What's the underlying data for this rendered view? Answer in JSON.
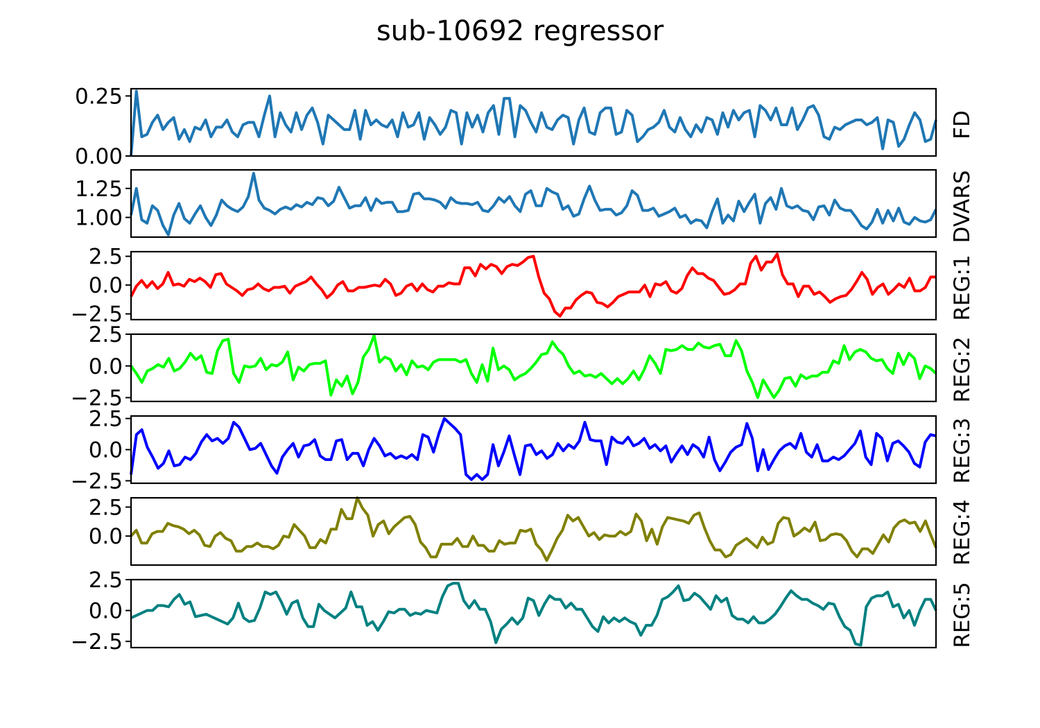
{
  "figure_title": "sub-10692 regressor",
  "chart_data": [
    {
      "type": "line",
      "name": "FD",
      "color": "#1f77b4",
      "ylim": [
        0.0,
        0.28
      ],
      "yticks": [
        0.0,
        0.25
      ],
      "yticklabels": [
        "0.00",
        "0.25"
      ],
      "values": [
        0.0,
        0.27,
        0.08,
        0.09,
        0.14,
        0.17,
        0.11,
        0.14,
        0.16,
        0.07,
        0.11,
        0.06,
        0.12,
        0.11,
        0.15,
        0.08,
        0.12,
        0.12,
        0.15,
        0.1,
        0.08,
        0.13,
        0.14,
        0.14,
        0.08,
        0.17,
        0.25,
        0.08,
        0.18,
        0.13,
        0.1,
        0.18,
        0.11,
        0.17,
        0.2,
        0.14,
        0.05,
        0.17,
        0.15,
        0.13,
        0.11,
        0.11,
        0.19,
        0.07,
        0.19,
        0.13,
        0.15,
        0.13,
        0.12,
        0.15,
        0.08,
        0.18,
        0.12,
        0.13,
        0.18,
        0.07,
        0.16,
        0.13,
        0.09,
        0.12,
        0.19,
        0.18,
        0.05,
        0.18,
        0.12,
        0.17,
        0.1,
        0.18,
        0.21,
        0.09,
        0.24,
        0.24,
        0.08,
        0.21,
        0.19,
        0.14,
        0.1,
        0.18,
        0.12,
        0.11,
        0.15,
        0.17,
        0.16,
        0.05,
        0.15,
        0.2,
        0.1,
        0.09,
        0.18,
        0.2,
        0.2,
        0.09,
        0.1,
        0.19,
        0.17,
        0.06,
        0.08,
        0.11,
        0.12,
        0.14,
        0.19,
        0.12,
        0.1,
        0.16,
        0.11,
        0.08,
        0.13,
        0.1,
        0.16,
        0.15,
        0.09,
        0.18,
        0.12,
        0.19,
        0.15,
        0.18,
        0.19,
        0.08,
        0.21,
        0.19,
        0.15,
        0.2,
        0.13,
        0.13,
        0.2,
        0.11,
        0.15,
        0.2,
        0.21,
        0.17,
        0.08,
        0.07,
        0.12,
        0.11,
        0.13,
        0.14,
        0.15,
        0.15,
        0.13,
        0.14,
        0.16,
        0.03,
        0.15,
        0.14,
        0.04,
        0.07,
        0.13,
        0.18,
        0.15,
        0.06,
        0.07,
        0.15
      ]
    },
    {
      "type": "line",
      "name": "DVARS",
      "color": "#1f77b4",
      "ylim": [
        0.83,
        1.41
      ],
      "yticks": [
        1.0,
        1.25
      ],
      "yticklabels": [
        "1.00",
        "1.25"
      ],
      "values": [
        1.02,
        1.25,
        0.98,
        0.95,
        1.1,
        1.06,
        0.93,
        0.85,
        1.02,
        1.12,
        0.99,
        0.95,
        1.03,
        1.1,
        1.0,
        0.93,
        1.02,
        1.15,
        1.1,
        1.07,
        1.05,
        1.09,
        1.18,
        1.38,
        1.15,
        1.08,
        1.06,
        1.03,
        1.07,
        1.09,
        1.07,
        1.11,
        1.09,
        1.13,
        1.11,
        1.17,
        1.16,
        1.1,
        1.14,
        1.26,
        1.17,
        1.08,
        1.1,
        1.1,
        1.17,
        1.06,
        1.16,
        1.12,
        1.13,
        1.13,
        1.05,
        1.05,
        1.06,
        1.2,
        1.21,
        1.16,
        1.16,
        1.15,
        1.13,
        1.08,
        1.17,
        1.13,
        1.12,
        1.12,
        1.11,
        1.13,
        1.06,
        1.05,
        1.1,
        1.17,
        1.13,
        1.18,
        1.1,
        1.05,
        1.2,
        1.23,
        1.1,
        1.1,
        1.25,
        1.22,
        1.2,
        1.07,
        1.1,
        1.01,
        1.03,
        1.16,
        1.27,
        1.15,
        1.06,
        1.07,
        1.07,
        1.02,
        1.04,
        1.1,
        1.23,
        1.19,
        1.06,
        1.06,
        1.08,
        1.01,
        1.03,
        1.05,
        1.08,
        1.0,
        1.02,
        0.95,
        0.98,
        0.97,
        0.91,
        1.05,
        1.16,
        0.95,
        1.02,
        0.97,
        1.14,
        1.05,
        1.13,
        1.2,
        0.95,
        1.12,
        1.17,
        1.07,
        1.25,
        1.1,
        1.08,
        1.1,
        1.06,
        1.05,
        0.98,
        1.09,
        1.1,
        1.02,
        1.15,
        1.08,
        1.06,
        1.06,
        1.0,
        0.93,
        0.9,
        0.96,
        1.07,
        0.95,
        1.06,
        0.97,
        1.08,
        0.96,
        0.94,
        1.0,
        0.97,
        0.96,
        0.98,
        1.07
      ]
    },
    {
      "type": "line",
      "name": "REG:1",
      "color": "#ff0000",
      "ylim": [
        -3.0,
        2.9
      ],
      "yticks": [
        -2.5,
        0.0,
        2.5
      ],
      "yticklabels": [
        "−2.5",
        "0.0",
        "2.5"
      ],
      "values": [
        -1.0,
        -0.1,
        0.4,
        -0.2,
        0.3,
        -0.3,
        0.1,
        1.1,
        0.0,
        0.1,
        -0.1,
        0.5,
        0.3,
        0.6,
        0.3,
        -0.2,
        0.9,
        1.0,
        0.1,
        -0.2,
        -0.5,
        -0.9,
        -0.4,
        -0.3,
        0.1,
        -0.3,
        -0.5,
        -0.2,
        -0.2,
        -0.1,
        -0.7,
        -0.1,
        0.1,
        0.3,
        0.7,
        0.1,
        -0.4,
        -1.1,
        -0.7,
        0.0,
        0.3,
        -0.5,
        -0.5,
        -0.2,
        -0.2,
        -0.1,
        0.0,
        -0.1,
        0.5,
        0.1,
        -0.9,
        -0.7,
        -0.1,
        0.1,
        -0.5,
        0.1,
        -0.4,
        -0.6,
        -0.1,
        -0.1,
        0.2,
        0.1,
        0.1,
        1.5,
        1.5,
        0.8,
        1.8,
        1.4,
        1.8,
        1.6,
        1.0,
        1.6,
        1.8,
        1.7,
        2.0,
        2.4,
        2.5,
        0.7,
        -0.7,
        -1.2,
        -2.3,
        -2.7,
        -2.0,
        -2.0,
        -1.3,
        -0.9,
        -0.6,
        -0.7,
        -1.5,
        -1.6,
        -1.9,
        -1.5,
        -1.0,
        -0.8,
        -0.6,
        -0.6,
        -0.6,
        0.0,
        -1.0,
        0.1,
        0.0,
        0.3,
        -0.5,
        -0.7,
        -0.3,
        0.8,
        1.5,
        1.0,
        1.0,
        0.6,
        0.4,
        -0.2,
        -0.8,
        -0.7,
        -0.4,
        0.1,
        0.1,
        1.9,
        2.5,
        1.3,
        2.0,
        2.0,
        2.7,
        0.9,
        0.1,
        0.1,
        -1.0,
        -0.1,
        -0.1,
        -0.8,
        -0.6,
        -1.0,
        -1.5,
        -1.2,
        -1.0,
        -0.9,
        -0.4,
        0.3,
        1.1,
        0.5,
        -0.8,
        -0.2,
        0.1,
        -0.8,
        -0.4,
        0.1,
        -0.2,
        0.6,
        -0.5,
        -0.5,
        -0.2,
        0.7,
        0.7
      ]
    },
    {
      "type": "line",
      "name": "REG:2",
      "color": "#00ff00",
      "ylim": [
        -2.8,
        2.5
      ],
      "yticks": [
        -2.5,
        0.0,
        2.5
      ],
      "yticklabels": [
        "−2.5",
        "0.0",
        "2.5"
      ],
      "values": [
        0.0,
        -0.6,
        -1.3,
        -0.4,
        -0.2,
        0.1,
        -0.1,
        0.6,
        -0.4,
        -0.2,
        0.3,
        1.0,
        0.5,
        0.8,
        -0.5,
        -0.6,
        1.2,
        2.0,
        2.1,
        -0.6,
        -1.3,
        0.0,
        -0.1,
        0.0,
        0.6,
        -0.3,
        0.1,
        0.0,
        0.3,
        1.1,
        -1.1,
        -0.1,
        -0.4,
        0.1,
        0.2,
        0.2,
        0.4,
        -2.3,
        -1.1,
        -1.6,
        -0.8,
        -2.2,
        -1.3,
        0.7,
        1.3,
        2.4,
        0.3,
        0.7,
        0.5,
        -0.4,
        0.1,
        -0.7,
        0.4,
        -0.1,
        0.0,
        -0.3,
        0.3,
        0.5,
        0.5,
        0.5,
        0.5,
        0.3,
        0.5,
        -0.6,
        -1.3,
        0.1,
        -1.2,
        1.4,
        -0.3,
        0.0,
        -0.3,
        -1.1,
        -0.8,
        -0.6,
        -0.2,
        0.3,
        0.9,
        1.0,
        1.9,
        1.3,
        0.9,
        0.0,
        -0.6,
        -0.4,
        -0.8,
        -0.7,
        -0.9,
        -0.6,
        -1.0,
        -1.4,
        -1.0,
        -1.4,
        -1.0,
        -0.4,
        -1.1,
        -0.3,
        0.8,
        0.2,
        -0.6,
        1.3,
        1.2,
        1.3,
        1.6,
        1.3,
        1.3,
        1.8,
        1.5,
        1.4,
        1.6,
        1.7,
        0.8,
        0.8,
        2.0,
        1.2,
        -0.4,
        -1.3,
        -2.5,
        -1.1,
        -1.8,
        -2.5,
        -1.9,
        -1.0,
        -0.9,
        -1.6,
        -0.7,
        -1.0,
        -0.8,
        -0.8,
        -0.5,
        -0.5,
        0.4,
        0.2,
        1.6,
        0.5,
        1.1,
        1.3,
        1.1,
        0.6,
        0.4,
        0.5,
        -0.2,
        -0.6,
        1.0,
        0.1,
        1.0,
        0.6,
        -1.0,
        0.0,
        -0.2,
        -0.6
      ]
    },
    {
      "type": "line",
      "name": "REG:3",
      "color": "#0000ff",
      "ylim": [
        -2.7,
        2.7
      ],
      "yticks": [
        -2.5,
        0.0,
        2.5
      ],
      "yticklabels": [
        "−2.5",
        "0.0",
        "2.5"
      ],
      "values": [
        -2.0,
        1.2,
        1.6,
        0.2,
        -0.6,
        -1.5,
        -1.1,
        -0.1,
        -1.3,
        -1.2,
        -0.6,
        -0.8,
        -0.3,
        0.6,
        1.2,
        0.7,
        0.9,
        0.5,
        0.9,
        2.2,
        1.8,
        0.9,
        0.0,
        0.1,
        0.5,
        -0.4,
        -1.3,
        -1.9,
        -0.6,
        0.0,
        0.5,
        -0.6,
        0.3,
        0.4,
        0.8,
        -0.5,
        -0.8,
        -0.8,
        0.7,
        0.8,
        -0.8,
        -0.3,
        -0.3,
        -1.3,
        0.0,
        0.9,
        0.3,
        -0.5,
        -0.3,
        -0.7,
        -0.5,
        -0.7,
        -0.4,
        -0.8,
        1.2,
        1.0,
        -0.2,
        1.3,
        2.5,
        2.1,
        1.7,
        1.2,
        -2.0,
        -2.4,
        -2.0,
        -2.4,
        -2.0,
        0.4,
        -1.3,
        -0.2,
        1.1,
        -0.5,
        -2.0,
        0.3,
        0.4,
        -0.4,
        -0.1,
        -0.7,
        -0.4,
        0.5,
        -0.1,
        0.4,
        0.1,
        0.7,
        2.2,
        0.8,
        0.7,
        0.7,
        -1.2,
        1.0,
        0.6,
        0.5,
        1.0,
        0.3,
        0.5,
        0.9,
        0.1,
        0.4,
        -0.1,
        0.3,
        -1.0,
        -0.3,
        0.3,
        -0.4,
        0.4,
        0.1,
        -0.6,
        1.0,
        -0.8,
        -1.7,
        -1.0,
        -0.2,
        0.2,
        0.4,
        2.1,
        0.9,
        -1.7,
        0.0,
        -1.6,
        -0.8,
        -0.1,
        0.3,
        0.5,
        0.1,
        1.3,
        -0.2,
        -0.6,
        0.4,
        -0.9,
        -0.9,
        -0.6,
        -0.8,
        -0.5,
        0.0,
        0.5,
        1.5,
        -0.6,
        -1.2,
        1.3,
        0.9,
        -0.9,
        0.5,
        0.7,
        0.3,
        -0.2,
        -1.1,
        -1.4,
        0.6,
        1.2,
        1.1
      ]
    },
    {
      "type": "line",
      "name": "REG:4",
      "color": "#808000",
      "ylim": [
        -2.5,
        3.3
      ],
      "yticks": [
        0.0,
        2.5
      ],
      "yticklabels": [
        "0.0",
        "2.5"
      ],
      "values": [
        0.0,
        0.5,
        -0.6,
        -0.6,
        0.2,
        0.4,
        0.4,
        1.1,
        0.9,
        0.8,
        0.6,
        0.2,
        0.5,
        0.1,
        -0.8,
        -0.9,
        0.0,
        0.3,
        -0.2,
        -0.4,
        -1.3,
        -1.3,
        -0.9,
        -0.9,
        -0.6,
        -0.9,
        -0.9,
        -1.1,
        -0.8,
        0.0,
        -0.1,
        1.0,
        0.5,
        0.0,
        -1.0,
        -1.0,
        -0.3,
        -0.6,
        0.6,
        0.6,
        2.3,
        1.5,
        1.5,
        3.3,
        2.4,
        1.8,
        0.0,
        1.0,
        1.3,
        0.2,
        0.8,
        1.2,
        1.6,
        1.7,
        1.0,
        -0.5,
        -1.0,
        -1.8,
        -1.8,
        -0.7,
        -0.7,
        -0.7,
        -0.2,
        -0.9,
        -0.9,
        0.0,
        -0.8,
        -0.8,
        -1.3,
        -1.3,
        -0.4,
        -0.7,
        -0.6,
        -0.6,
        0.5,
        0.4,
        0.6,
        -0.7,
        -1.2,
        -2.1,
        -1.2,
        -0.2,
        0.5,
        1.8,
        1.3,
        1.6,
        0.8,
        0.0,
        0.3,
        -0.3,
        0.1,
        0.0,
        0.0,
        0.4,
        0.1,
        0.4,
        1.9,
        1.3,
        -0.4,
        0.6,
        -0.7,
        0.8,
        1.6,
        1.5,
        1.4,
        1.3,
        1.1,
        1.8,
        2.0,
        0.7,
        -0.4,
        -1.2,
        -1.2,
        -1.8,
        -1.6,
        -0.8,
        -0.5,
        -0.2,
        -0.6,
        -1.0,
        -0.1,
        -0.7,
        -0.5,
        1.1,
        1.6,
        1.5,
        0.0,
        0.3,
        0.7,
        0.4,
        1.2,
        -0.4,
        -0.3,
        0.1,
        0.2,
        0.1,
        -0.4,
        -1.3,
        -1.8,
        -1.1,
        -1.1,
        -1.5,
        -0.7,
        0.1,
        -0.5,
        0.7,
        1.2,
        1.4,
        1.1,
        1.2,
        0.4,
        1.3,
        0.1,
        -1.0
      ]
    },
    {
      "type": "line",
      "name": "REG:5",
      "color": "#008080",
      "ylim": [
        -3.0,
        2.5
      ],
      "yticks": [
        -2.5,
        0.0,
        2.5
      ],
      "yticklabels": [
        "−2.5",
        "0.0",
        "2.5"
      ],
      "values": [
        -0.6,
        -0.4,
        -0.2,
        0.0,
        0.0,
        0.4,
        0.4,
        0.3,
        0.9,
        1.3,
        0.5,
        0.7,
        -0.5,
        -0.4,
        -0.3,
        -0.5,
        -0.7,
        -0.9,
        -1.1,
        -0.6,
        0.6,
        -0.6,
        -0.9,
        -0.8,
        0.2,
        1.5,
        1.3,
        1.5,
        0.7,
        -0.3,
        0.6,
        0.8,
        -0.6,
        -1.3,
        -1.3,
        0.5,
        0.0,
        -0.3,
        -0.6,
        -0.2,
        0.2,
        1.5,
        0.3,
        0.3,
        -1.2,
        -0.9,
        -1.6,
        -0.9,
        -0.1,
        -0.2,
        0.1,
        0.1,
        -0.4,
        -0.2,
        -0.3,
        0.0,
        -0.1,
        -0.2,
        1.1,
        2.0,
        2.2,
        2.2,
        0.8,
        0.2,
        0.8,
        0.1,
        0.1,
        -0.9,
        -2.6,
        -1.5,
        -1.1,
        -0.6,
        -1.1,
        -0.6,
        1.0,
        0.8,
        -0.4,
        0.5,
        1.2,
        0.9,
        0.9,
        0.2,
        0.6,
        0.1,
        0.1,
        -0.6,
        -1.3,
        -1.7,
        -0.5,
        -1.0,
        -0.6,
        -0.9,
        -0.6,
        -0.9,
        -1.1,
        -2.0,
        -1.2,
        -1.2,
        -0.4,
        0.9,
        1.1,
        1.5,
        2.0,
        0.8,
        0.9,
        1.4,
        1.1,
        0.6,
        0.1,
        1.2,
        0.7,
        1.0,
        -0.4,
        -0.7,
        -0.7,
        -1.0,
        -0.5,
        -1.0,
        -1.0,
        -0.7,
        -0.3,
        0.3,
        1.0,
        1.6,
        1.2,
        0.9,
        0.9,
        0.6,
        0.4,
        0.1,
        0.6,
        0.5,
        -0.5,
        -1.3,
        -1.6,
        -2.7,
        -2.8,
        0.3,
        1.0,
        1.2,
        1.2,
        1.5,
        0.3,
        0.5,
        -0.6,
        0.0,
        -1.2,
        0.0,
        0.9,
        0.9,
        0.0
      ]
    }
  ]
}
